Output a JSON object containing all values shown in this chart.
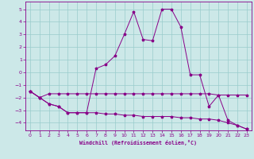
{
  "xlabel": "Windchill (Refroidissement éolien,°C)",
  "bg_color": "#cce8e8",
  "grid_color": "#99cccc",
  "line_color": "#880088",
  "axis_color": "#880088",
  "xlim": [
    -0.5,
    23.5
  ],
  "ylim": [
    -4.6,
    5.6
  ],
  "xticks": [
    0,
    1,
    2,
    3,
    4,
    5,
    6,
    7,
    8,
    9,
    10,
    11,
    12,
    13,
    14,
    15,
    16,
    17,
    18,
    19,
    20,
    21,
    22,
    23
  ],
  "yticks": [
    -4,
    -3,
    -2,
    -1,
    0,
    1,
    2,
    3,
    4,
    5
  ],
  "line1_x": [
    0,
    1,
    2,
    3,
    4,
    5,
    6,
    7,
    8,
    9,
    10,
    11,
    12,
    13,
    14,
    15,
    16,
    17,
    18,
    19,
    20,
    21,
    22,
    23
  ],
  "line1_y": [
    -1.5,
    -2.0,
    -1.7,
    -1.7,
    -1.7,
    -1.7,
    -1.7,
    -1.7,
    -1.7,
    -1.7,
    -1.7,
    -1.7,
    -1.7,
    -1.7,
    -1.7,
    -1.7,
    -1.7,
    -1.7,
    -1.7,
    -1.7,
    -1.8,
    -1.8,
    -1.8,
    -1.8
  ],
  "line2_x": [
    0,
    1,
    2,
    3,
    4,
    5,
    6,
    7,
    8,
    9,
    10,
    11,
    12,
    13,
    14,
    15,
    16,
    17,
    18,
    19,
    20,
    21,
    22,
    23
  ],
  "line2_y": [
    -1.5,
    -2.0,
    -2.5,
    -2.7,
    -3.2,
    -3.2,
    -3.2,
    -3.2,
    -3.3,
    -3.3,
    -3.4,
    -3.4,
    -3.5,
    -3.5,
    -3.5,
    -3.5,
    -3.6,
    -3.6,
    -3.7,
    -3.7,
    -3.8,
    -4.0,
    -4.2,
    -4.5
  ],
  "line3_x": [
    0,
    1,
    2,
    3,
    4,
    5,
    6,
    7,
    8,
    9,
    10,
    11,
    12,
    13,
    14,
    15,
    16,
    17,
    18,
    19,
    20,
    21,
    22,
    23
  ],
  "line3_y": [
    -1.5,
    -2.0,
    -2.5,
    -2.7,
    -3.2,
    -3.2,
    -3.2,
    0.3,
    0.6,
    1.3,
    3.0,
    4.8,
    2.6,
    2.5,
    5.0,
    5.0,
    3.6,
    -0.2,
    -0.2,
    -2.7,
    -1.8,
    -3.8,
    -4.2,
    -4.5
  ]
}
